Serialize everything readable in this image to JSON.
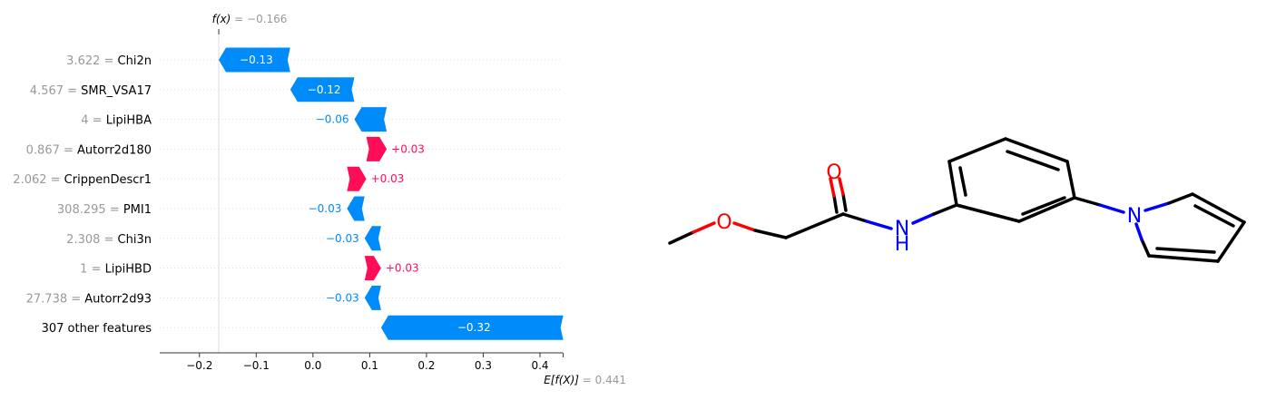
{
  "chart_data": {
    "type": "waterfall",
    "fx_label": "f(x)",
    "fx_value_text": "= −0.166",
    "fx_value": -0.166,
    "ex_label": "E[f(X)]",
    "ex_value_text": "= 0.441",
    "ex_value": 0.441,
    "xlim": [
      -0.27,
      0.44
    ],
    "ticks": [
      {
        "value": -0.2,
        "label": "−0.2"
      },
      {
        "value": -0.1,
        "label": "−0.1"
      },
      {
        "value": 0.0,
        "label": "0.0"
      },
      {
        "value": 0.1,
        "label": "0.1"
      },
      {
        "value": 0.2,
        "label": "0.2"
      },
      {
        "value": 0.3,
        "label": "0.3"
      },
      {
        "value": 0.4,
        "label": "0.4"
      }
    ],
    "features": [
      {
        "value_text": "3.622 =",
        "name": "Chi2n",
        "start": -0.04,
        "end": -0.166,
        "label": "−0.13",
        "label_inside": true
      },
      {
        "value_text": "4.567 =",
        "name": "SMR_VSA17",
        "start": 0.073,
        "end": -0.04,
        "label": "−0.12",
        "label_inside": true
      },
      {
        "value_text": "4 =",
        "name": "LipiHBA",
        "start": 0.13,
        "end": 0.073,
        "label": "−0.06",
        "label_inside": false
      },
      {
        "value_text": "0.867 =",
        "name": "Autorr2d180",
        "start": 0.094,
        "end": 0.13,
        "label": "+0.03",
        "label_inside": false
      },
      {
        "value_text": "2.062 =",
        "name": "CrippenDescr1",
        "start": 0.06,
        "end": 0.094,
        "label": "+0.03",
        "label_inside": false
      },
      {
        "value_text": "308.295 =",
        "name": "PMI1",
        "start": 0.091,
        "end": 0.06,
        "label": "−0.03",
        "label_inside": false
      },
      {
        "value_text": "2.308 =",
        "name": "Chi3n",
        "start": 0.12,
        "end": 0.091,
        "label": "−0.03",
        "label_inside": false
      },
      {
        "value_text": "1 =",
        "name": "LipiHBD",
        "start": 0.091,
        "end": 0.12,
        "label": "+0.03",
        "label_inside": false
      },
      {
        "value_text": "27.738 =",
        "name": "Autorr2d93",
        "start": 0.12,
        "end": 0.091,
        "label": "−0.03",
        "label_inside": false
      },
      {
        "value_text": "",
        "name": "307 other features",
        "start": 0.441,
        "end": 0.12,
        "label": "−0.32",
        "label_inside": true
      }
    ],
    "colors": {
      "positive": "#ff0d57",
      "negative": "#008bfb",
      "label_text": "#000000",
      "value_text": "#999999",
      "axis": "#333333"
    }
  },
  "molecule": {
    "atom_labels": [
      "O",
      "O",
      "N",
      "H",
      "N"
    ],
    "colors": {
      "bond": "#000000",
      "oxygen": "#ff0000",
      "nitrogen": "#0000ff"
    }
  }
}
